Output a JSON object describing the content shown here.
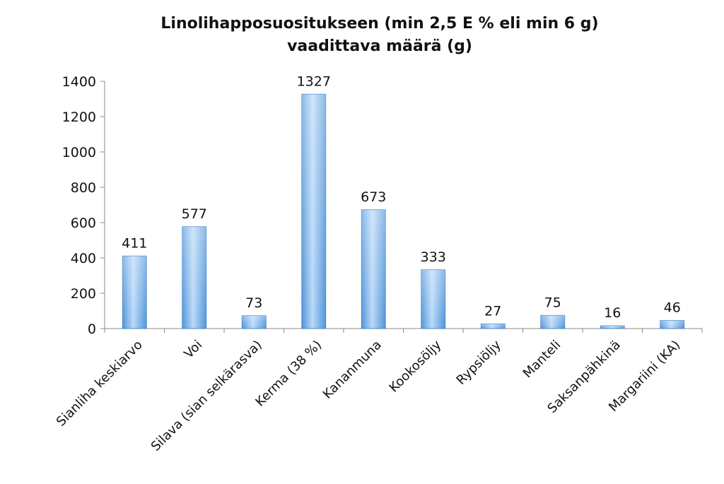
{
  "chart_data": {
    "type": "bar",
    "title": "Linolihapposuositukseen (min 2,5 E % eli min 6 g)",
    "subtitle": "vaadittava määrä (g)",
    "xlabel": "",
    "ylabel": "",
    "categories": [
      "Sianliha keskiarvo",
      "Voi",
      "Silava (sian selkärasva)",
      "Kerma (38 %)",
      "Kananmuna",
      "Kookosöljy",
      "Rypsiöljy",
      "Manteli",
      "Saksanpähkinä",
      "Margariini (KA)"
    ],
    "values": [
      411,
      577,
      73,
      1327,
      673,
      333,
      27,
      75,
      16,
      46
    ],
    "data_labels": [
      "411",
      "577",
      "73",
      "1327",
      "673",
      "333",
      "27",
      "75",
      "16",
      "46"
    ],
    "ylim": [
      0,
      1400
    ],
    "yticks": [
      0,
      200,
      400,
      600,
      800,
      1000,
      1200,
      1400
    ],
    "ytick_labels": [
      "0",
      "200",
      "400",
      "600",
      "800",
      "1000",
      "1200",
      "1400"
    ],
    "grid": false,
    "legend": "none",
    "colors": {
      "bar_light": "#b8d8f8",
      "bar_dark": "#4f94d9",
      "bar_edge": "#3d7fc4",
      "axis": "#888888"
    }
  }
}
